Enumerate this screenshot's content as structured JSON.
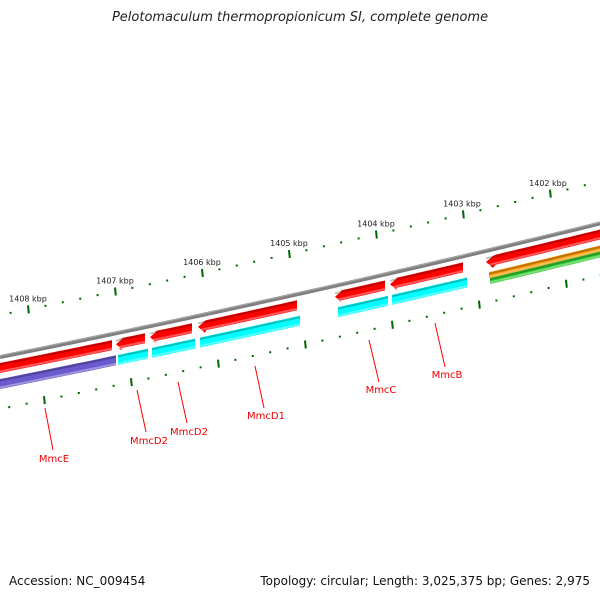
{
  "title": "Pelotomaculum thermopropionicum SI, complete genome",
  "footer": {
    "accession": "Accession: NC_009454",
    "summary": "Topology: circular; Length: 3,025,375 bp; Genes: 2,975"
  },
  "kbp_labels": [
    "1408 kbp",
    "1407 kbp",
    "1406 kbp",
    "1405 kbp",
    "1404 kbp",
    "1403 kbp",
    "1402 kbp"
  ],
  "gene_labels": [
    "MmcE",
    "MmcD2",
    "MmcD2",
    "MmcD1",
    "MmcC",
    "MmcB"
  ],
  "colors": {
    "backbone": "#808080",
    "forward_cds": "#ff0000",
    "cyan_track": "#00ffff",
    "purple_track": "#6a5acd",
    "orange_track": "#ff9900",
    "green_track": "#33cc33",
    "ticks": "#006600",
    "labels": "#ff0000"
  }
}
